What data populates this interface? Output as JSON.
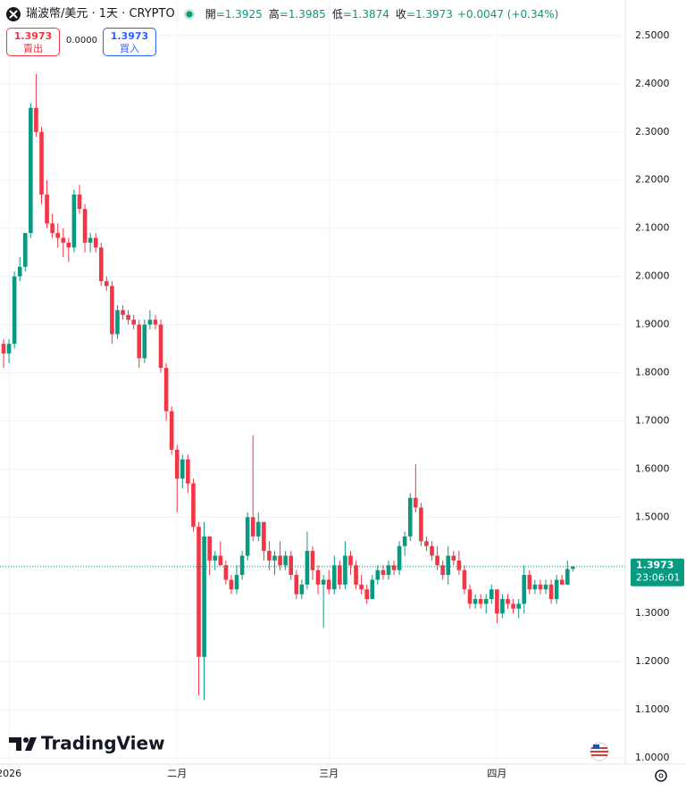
{
  "header": {
    "symbol": "瑞波幣/美元 · 1天 · CRYPTO",
    "ohlc": [
      {
        "key": "開",
        "text": "=1.3925"
      },
      {
        "key": "高",
        "text": "=1.3985"
      },
      {
        "key": "低",
        "text": "=1.3874"
      },
      {
        "key": "收",
        "text": "=1.3973"
      }
    ],
    "change": "+0.0047 (+0.34%)"
  },
  "trade": {
    "sell_price": "1.3973",
    "sell_label": "賣出",
    "spread": "0.0000",
    "buy_price": "1.3973",
    "buy_label": "買入"
  },
  "logo": "TradingView",
  "chart_data": {
    "type": "candlestick",
    "up_color": "#089981",
    "down_color": "#f23645",
    "grid": true,
    "categories": [
      null,
      "2026",
      null,
      null,
      null,
      null,
      null,
      null,
      null,
      null,
      null,
      null,
      null,
      null,
      null,
      null,
      null,
      null,
      null,
      null,
      null,
      null,
      null,
      null,
      null,
      null,
      null,
      null,
      null,
      null,
      null,
      null,
      "二月",
      null,
      null,
      null,
      null,
      null,
      null,
      null,
      null,
      null,
      null,
      null,
      null,
      null,
      null,
      null,
      null,
      null,
      null,
      null,
      null,
      null,
      null,
      null,
      null,
      null,
      null,
      null,
      "三月",
      null,
      null,
      null,
      null,
      null,
      null,
      null,
      null,
      null,
      null,
      null,
      null,
      null,
      null,
      null,
      null,
      null,
      null,
      null,
      null,
      null,
      null,
      null,
      null,
      null,
      null,
      null,
      null,
      null,
      null,
      "四月",
      null,
      null,
      null,
      null,
      null,
      null,
      null,
      null,
      null,
      null,
      null,
      null,
      null,
      null
    ],
    "open": [
      1.86,
      1.84,
      1.86,
      2.0,
      2.02,
      2.09,
      2.35,
      2.3,
      2.17,
      2.11,
      2.09,
      2.08,
      2.07,
      2.06,
      2.17,
      2.14,
      2.07,
      2.08,
      2.06,
      1.99,
      1.98,
      1.88,
      1.93,
      1.92,
      1.91,
      1.9,
      1.83,
      1.9,
      1.91,
      1.9,
      1.81,
      1.72,
      1.64,
      1.58,
      1.62,
      1.57,
      1.48,
      1.21,
      1.46,
      1.41,
      1.42,
      1.4,
      1.37,
      1.35,
      1.38,
      1.42,
      1.5,
      1.46,
      1.49,
      1.43,
      1.41,
      1.42,
      1.4,
      1.42,
      1.38,
      1.34,
      1.36,
      1.43,
      1.39,
      1.36,
      1.37,
      1.35,
      1.4,
      1.36,
      1.42,
      1.4,
      1.36,
      1.35,
      1.33,
      1.37,
      1.39,
      1.38,
      1.4,
      1.39,
      1.44,
      1.46,
      1.54,
      1.52,
      1.45,
      1.44,
      1.42,
      1.4,
      1.38,
      1.42,
      1.41,
      1.39,
      1.35,
      1.32,
      1.33,
      1.32,
      1.33,
      1.35,
      1.3,
      1.33,
      1.32,
      1.31,
      1.32,
      1.38,
      1.35,
      1.36,
      1.35,
      1.36,
      1.33,
      1.37,
      1.36,
      1.3925
    ],
    "high": [
      1.87,
      1.87,
      2.01,
      2.04,
      2.09,
      2.36,
      2.42,
      2.31,
      2.2,
      2.13,
      2.11,
      2.1,
      2.08,
      2.18,
      2.19,
      2.15,
      2.09,
      2.09,
      2.07,
      2.0,
      1.99,
      1.94,
      1.94,
      1.93,
      1.92,
      1.91,
      1.91,
      1.93,
      1.92,
      1.91,
      1.82,
      1.73,
      1.65,
      1.63,
      1.63,
      1.58,
      1.49,
      1.49,
      1.46,
      1.43,
      1.45,
      1.41,
      1.38,
      1.4,
      1.43,
      1.51,
      1.67,
      1.51,
      1.49,
      1.45,
      1.43,
      1.45,
      1.43,
      1.43,
      1.39,
      1.37,
      1.47,
      1.44,
      1.4,
      1.38,
      1.39,
      1.42,
      1.41,
      1.45,
      1.43,
      1.41,
      1.38,
      1.36,
      1.38,
      1.4,
      1.4,
      1.41,
      1.41,
      1.45,
      1.47,
      1.55,
      1.61,
      1.53,
      1.46,
      1.45,
      1.44,
      1.41,
      1.44,
      1.43,
      1.43,
      1.4,
      1.36,
      1.34,
      1.34,
      1.34,
      1.36,
      1.35,
      1.34,
      1.34,
      1.33,
      1.33,
      1.4,
      1.39,
      1.37,
      1.37,
      1.37,
      1.37,
      1.38,
      1.38,
      1.41,
      1.3985
    ],
    "low": [
      1.81,
      1.82,
      1.85,
      1.99,
      2.01,
      2.08,
      2.29,
      2.15,
      2.1,
      2.08,
      2.06,
      2.04,
      2.03,
      2.05,
      2.13,
      2.05,
      2.05,
      2.05,
      1.98,
      1.97,
      1.86,
      1.87,
      1.91,
      1.9,
      1.89,
      1.81,
      1.82,
      1.89,
      1.89,
      1.8,
      1.7,
      1.63,
      1.51,
      1.56,
      1.55,
      1.47,
      1.13,
      1.12,
      1.38,
      1.39,
      1.4,
      1.36,
      1.34,
      1.34,
      1.37,
      1.41,
      1.45,
      1.45,
      1.41,
      1.39,
      1.38,
      1.39,
      1.39,
      1.37,
      1.33,
      1.33,
      1.35,
      1.37,
      1.34,
      1.27,
      1.34,
      1.34,
      1.35,
      1.35,
      1.38,
      1.35,
      1.34,
      1.32,
      1.33,
      1.36,
      1.37,
      1.37,
      1.38,
      1.38,
      1.42,
      1.45,
      1.51,
      1.44,
      1.43,
      1.41,
      1.39,
      1.37,
      1.36,
      1.4,
      1.38,
      1.34,
      1.31,
      1.31,
      1.31,
      1.3,
      1.32,
      1.28,
      1.29,
      1.31,
      1.3,
      1.29,
      1.3,
      1.34,
      1.34,
      1.34,
      1.34,
      1.32,
      1.32,
      1.36,
      1.36,
      1.3874
    ],
    "close": [
      1.84,
      1.86,
      2.0,
      2.02,
      2.09,
      2.35,
      2.3,
      2.17,
      2.11,
      2.09,
      2.08,
      2.07,
      2.06,
      2.17,
      2.14,
      2.07,
      2.08,
      2.06,
      1.99,
      1.98,
      1.88,
      1.93,
      1.92,
      1.91,
      1.9,
      1.83,
      1.9,
      1.91,
      1.9,
      1.81,
      1.72,
      1.64,
      1.58,
      1.62,
      1.57,
      1.48,
      1.21,
      1.46,
      1.41,
      1.42,
      1.4,
      1.37,
      1.35,
      1.38,
      1.42,
      1.5,
      1.46,
      1.49,
      1.43,
      1.41,
      1.42,
      1.4,
      1.42,
      1.38,
      1.34,
      1.36,
      1.43,
      1.39,
      1.36,
      1.37,
      1.35,
      1.4,
      1.36,
      1.42,
      1.4,
      1.36,
      1.35,
      1.33,
      1.37,
      1.39,
      1.38,
      1.4,
      1.39,
      1.44,
      1.46,
      1.54,
      1.52,
      1.45,
      1.44,
      1.42,
      1.4,
      1.38,
      1.42,
      1.41,
      1.39,
      1.35,
      1.32,
      1.33,
      1.32,
      1.33,
      1.35,
      1.3,
      1.33,
      1.32,
      1.31,
      1.32,
      1.38,
      1.35,
      1.36,
      1.35,
      1.36,
      1.33,
      1.37,
      1.36,
      1.3925,
      1.3973
    ],
    "ylim": [
      0.989,
      2.574
    ],
    "yticks": [
      {
        "value": 1.0,
        "label": "1.0000"
      },
      {
        "value": 1.1,
        "label": "1.1000"
      },
      {
        "value": 1.2,
        "label": "1.2000"
      },
      {
        "value": 1.3,
        "label": "1.3000"
      },
      {
        "value": 1.4,
        "label": "1.4000"
      },
      {
        "value": 1.5,
        "label": "1.5000"
      },
      {
        "value": 1.6,
        "label": "1.6000"
      },
      {
        "value": 1.7,
        "label": "1.7000"
      },
      {
        "value": 1.8,
        "label": "1.8000"
      },
      {
        "value": 1.9,
        "label": "1.9000"
      },
      {
        "value": 2.0,
        "label": "2.0000"
      },
      {
        "value": 2.1,
        "label": "2.1000"
      },
      {
        "value": 2.2,
        "label": "2.2000"
      },
      {
        "value": 2.3,
        "label": "2.3000"
      },
      {
        "value": 2.4,
        "label": "2.4000"
      },
      {
        "value": 2.5,
        "label": "2.5000"
      }
    ],
    "last_price": 1.3973,
    "countdown": "23:06:01"
  }
}
